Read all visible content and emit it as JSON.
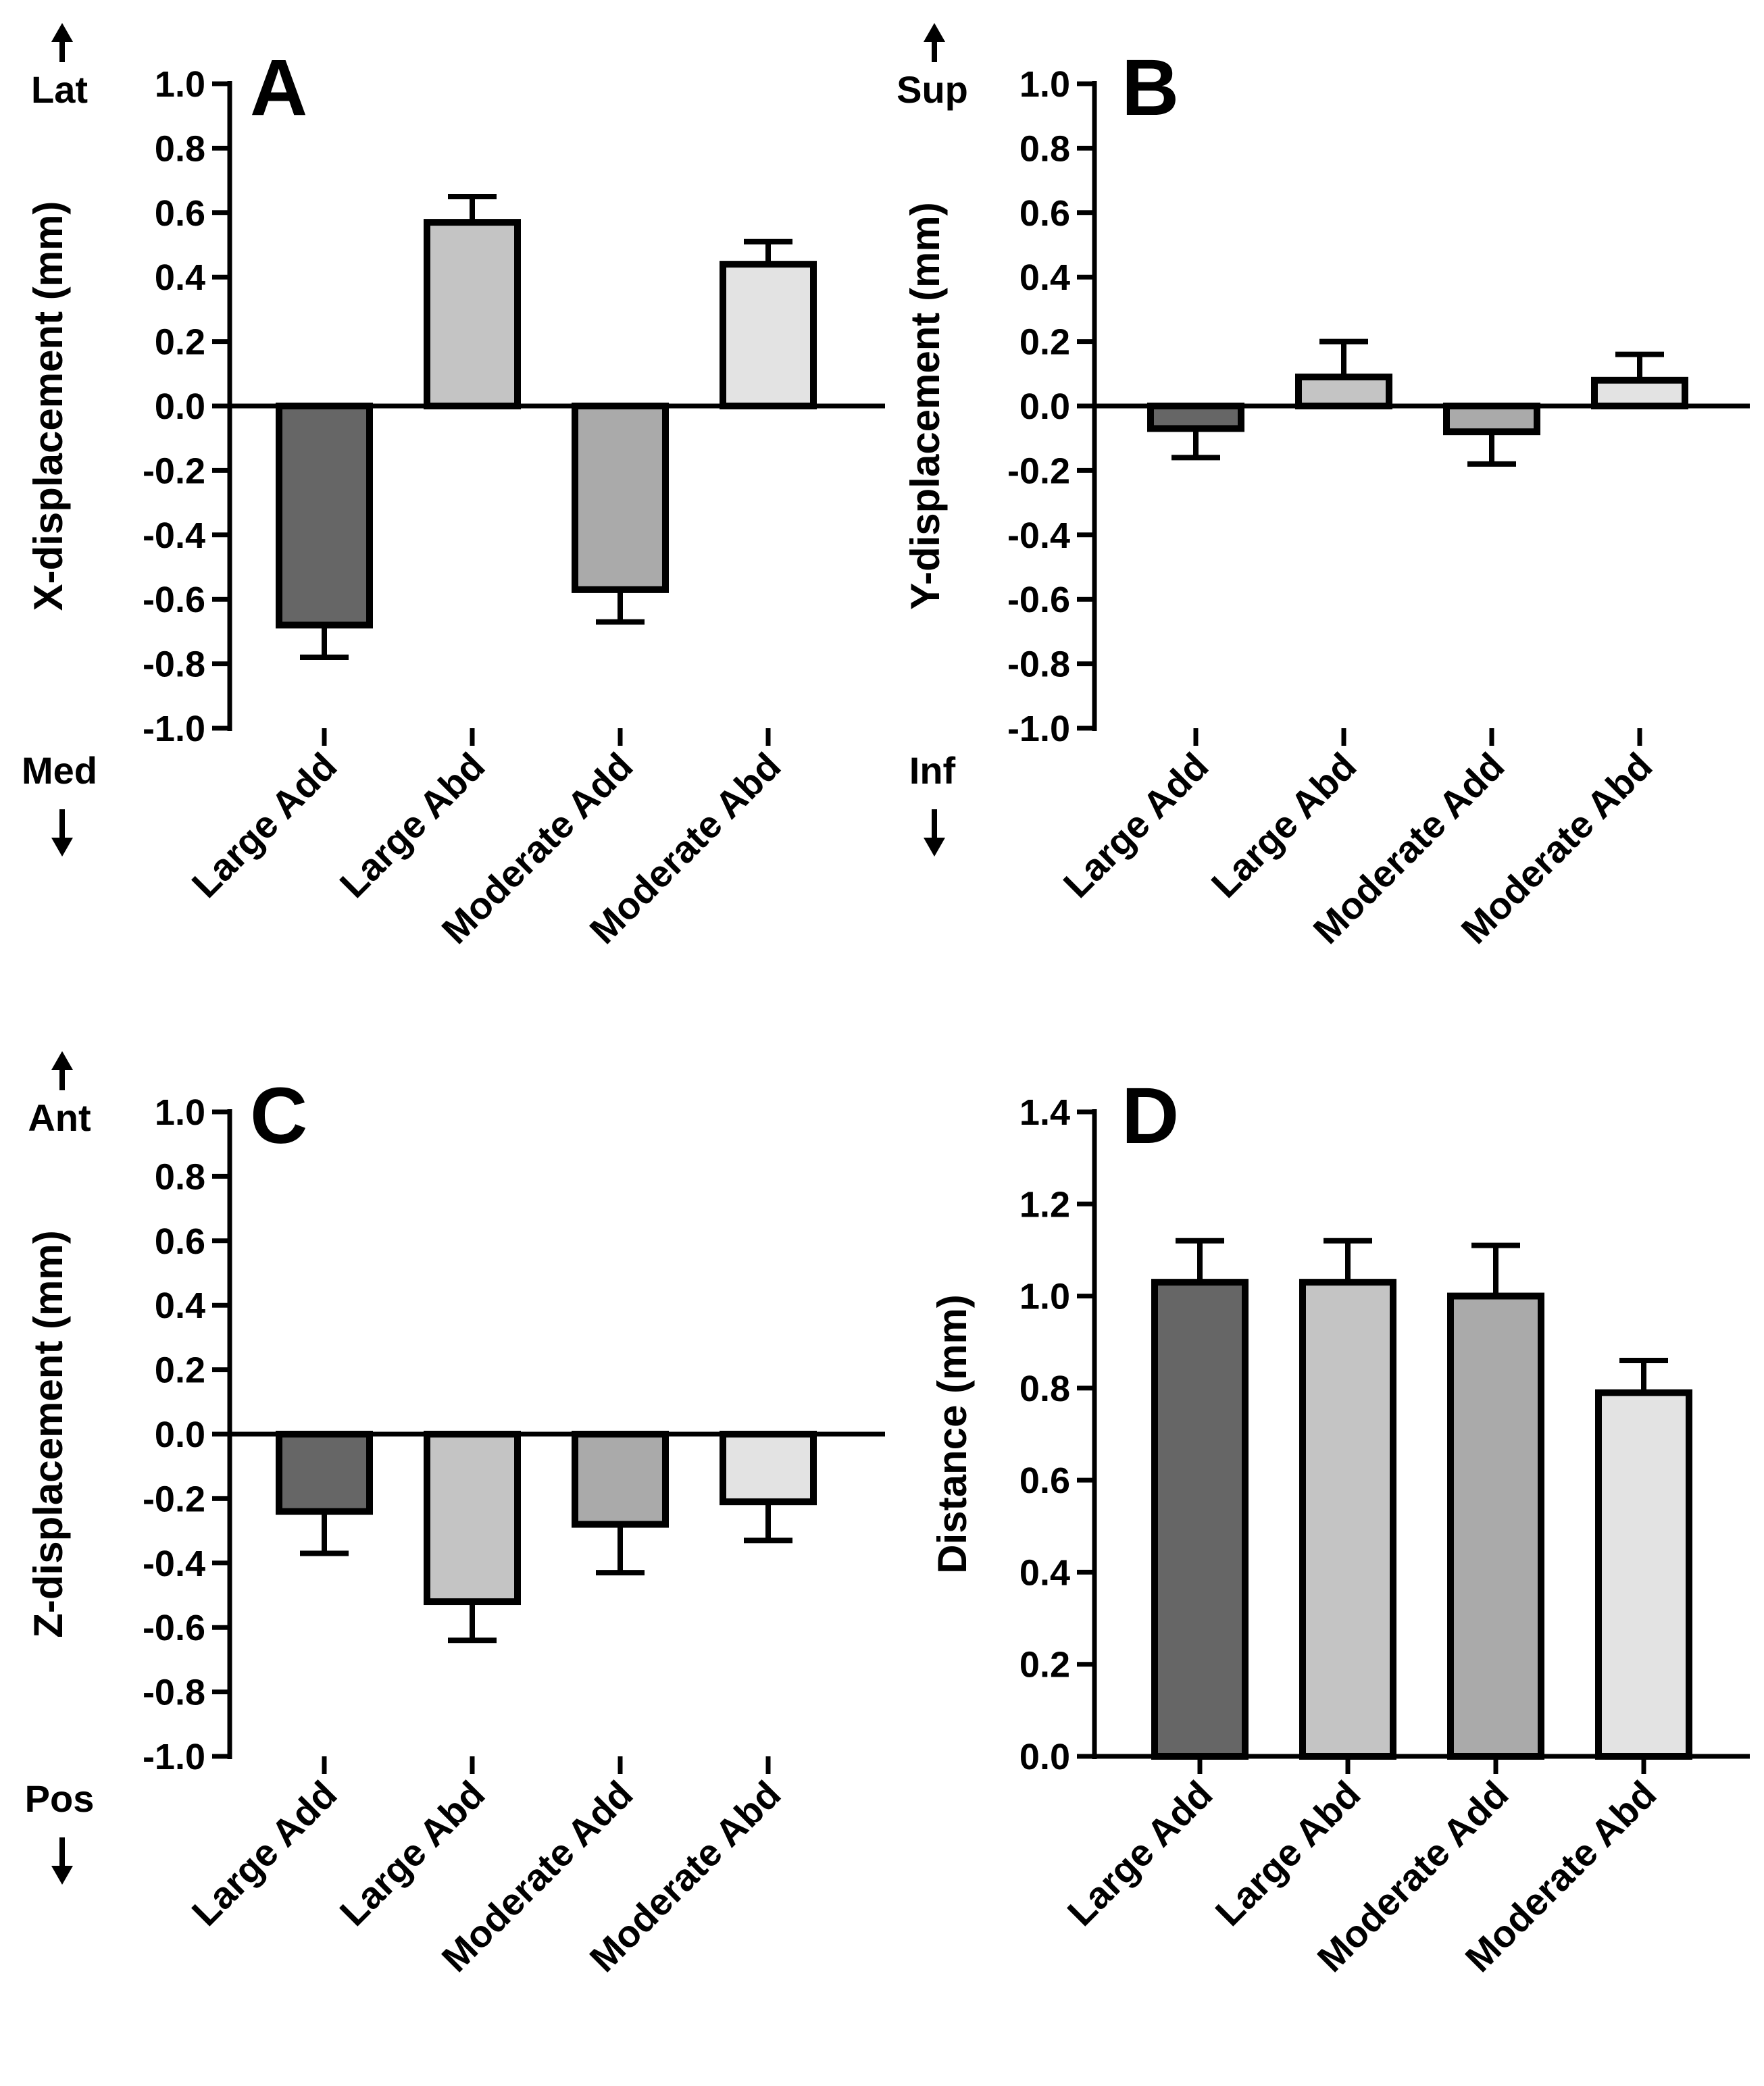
{
  "chart_data": [
    {
      "panel": "A",
      "type": "bar",
      "categories": [
        "Large Add",
        "Large Abd",
        "Moderate Add",
        "Moderate Abd"
      ],
      "values": [
        -0.68,
        0.57,
        -0.57,
        0.44
      ],
      "errors": [
        0.1,
        0.08,
        0.1,
        0.07
      ],
      "colors": [
        "#666666",
        "#c4c4c4",
        "#aaaaaa",
        "#e3e3e3"
      ],
      "ylabel": "X-displacement (mm)",
      "ylim": [
        -1.0,
        1.0
      ],
      "yticks": [
        "1.0",
        "0.8",
        "0.6",
        "0.4",
        "0.2",
        "0.0",
        "-0.2",
        "-0.4",
        "-0.6",
        "-0.8",
        "-1.0"
      ],
      "direction_top": "Lat",
      "direction_bottom": "Med",
      "grid": false
    },
    {
      "panel": "B",
      "type": "bar",
      "categories": [
        "Large Add",
        "Large Abd",
        "Moderate Add",
        "Moderate Abd"
      ],
      "values": [
        -0.07,
        0.09,
        -0.08,
        0.08
      ],
      "errors": [
        0.09,
        0.11,
        0.1,
        0.08
      ],
      "colors": [
        "#666666",
        "#c4c4c4",
        "#aaaaaa",
        "#e3e3e3"
      ],
      "ylabel": "Y-displacement (mm)",
      "ylim": [
        -1.0,
        1.0
      ],
      "yticks": [
        "1.0",
        "0.8",
        "0.6",
        "0.4",
        "0.2",
        "0.0",
        "-0.2",
        "-0.4",
        "-0.6",
        "-0.8",
        "-1.0"
      ],
      "direction_top": "Sup",
      "direction_bottom": "Inf",
      "grid": false
    },
    {
      "panel": "C",
      "type": "bar",
      "categories": [
        "Large Add",
        "Large Abd",
        "Moderate Add",
        "Moderate Abd"
      ],
      "values": [
        -0.24,
        -0.52,
        -0.28,
        -0.21
      ],
      "errors": [
        0.13,
        0.12,
        0.15,
        0.12
      ],
      "colors": [
        "#666666",
        "#c4c4c4",
        "#aaaaaa",
        "#e3e3e3"
      ],
      "ylabel": "Z-displacement (mm)",
      "ylim": [
        -1.0,
        1.0
      ],
      "yticks": [
        "1.0",
        "0.8",
        "0.6",
        "0.4",
        "0.2",
        "0.0",
        "-0.2",
        "-0.4",
        "-0.6",
        "-0.8",
        "-1.0"
      ],
      "direction_top": "Ant",
      "direction_bottom": "Pos",
      "grid": false
    },
    {
      "panel": "D",
      "type": "bar",
      "categories": [
        "Large Add",
        "Large Abd",
        "Moderate Add",
        "Moderate Abd"
      ],
      "values": [
        1.03,
        1.03,
        1.0,
        0.79
      ],
      "errors": [
        0.09,
        0.09,
        0.11,
        0.07
      ],
      "colors": [
        "#666666",
        "#c4c4c4",
        "#aaaaaa",
        "#e3e3e3"
      ],
      "ylabel": "Distance (mm)",
      "ylim": [
        0.0,
        1.4
      ],
      "yticks": [
        "1.4",
        "1.2",
        "1.0",
        "0.8",
        "0.6",
        "0.4",
        "0.2",
        "0.0"
      ],
      "direction_top": "",
      "direction_bottom": "",
      "grid": false
    }
  ]
}
